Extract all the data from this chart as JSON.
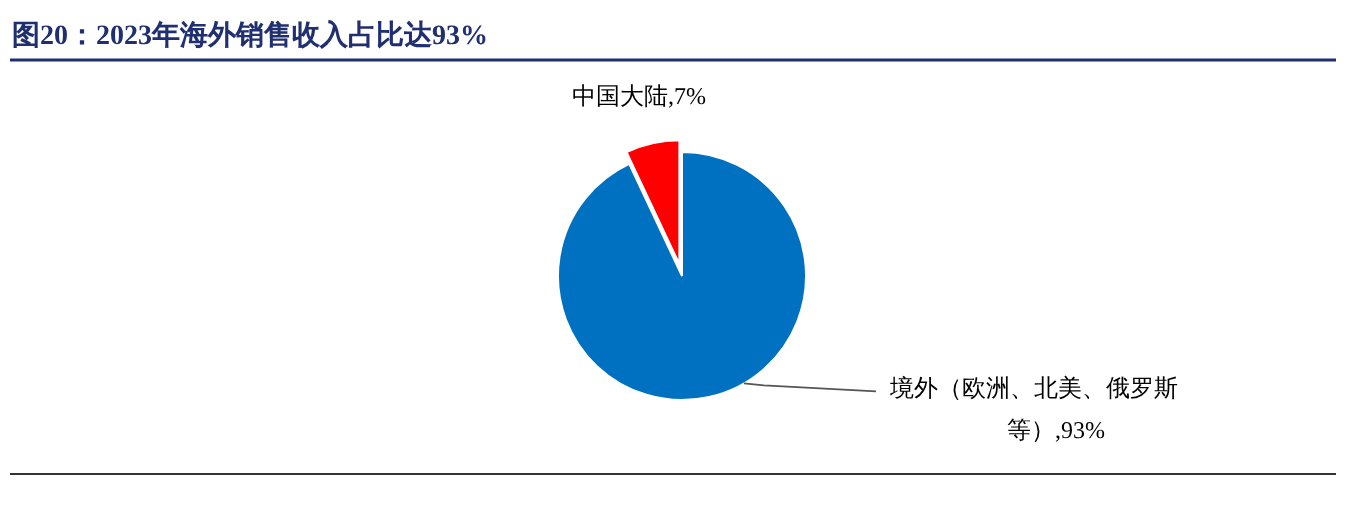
{
  "chart_data": {
    "type": "pie",
    "title": "图20：2023年海外销售收入占比达93%",
    "categories": [
      "中国大陆",
      "境外（欧洲、北美、俄罗斯等）"
    ],
    "values": [
      7,
      93
    ],
    "value_labels": [
      ",7%",
      ",93%"
    ],
    "colors": [
      "#ff0000",
      "#0070c0"
    ]
  }
}
